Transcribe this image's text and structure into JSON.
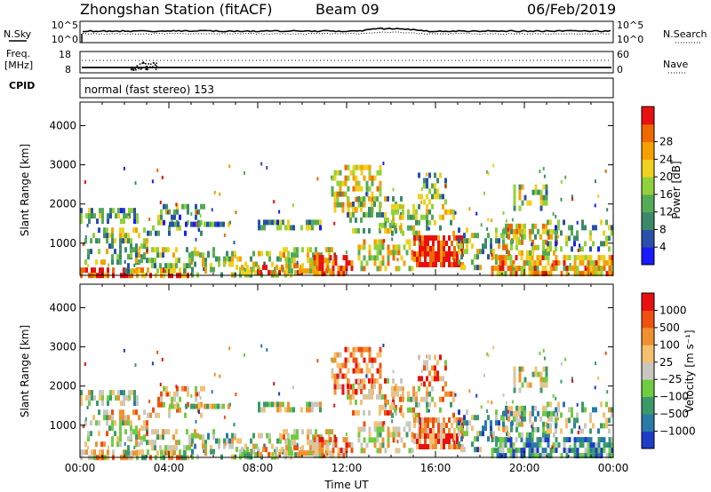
{
  "header": {
    "station": "Zhongshan Station (fitACF)",
    "beam": "Beam 09",
    "date": "06/Feb/2019"
  },
  "panel_labels": {
    "nsky": "N.Sky",
    "nsearch": "N.Search",
    "freq_line1": "Freq.",
    "freq_line2": "[MHz]",
    "nave": "Nave",
    "cpid": "CPID",
    "cpid_value": "normal (fast stereo) 153"
  },
  "chart_data": [
    {
      "type": "line",
      "name": "noise",
      "left_ticks": [
        "10^5",
        "10^0"
      ],
      "right_ticks": [
        "10^5",
        "10^0"
      ],
      "note": "N.Sky solid line, N.Search dotted line, roughly flat near upper-middle of log axis"
    },
    {
      "type": "line",
      "name": "frequency_nave",
      "left_ticks": [
        "18",
        "8"
      ],
      "right_ticks": [
        "60",
        "0"
      ]
    },
    {
      "type": "heatmap",
      "name": "power",
      "xlabel": "",
      "ylabel": "Slant Range [km]",
      "yticks": [
        1000,
        2000,
        3000,
        4000
      ],
      "ylim": [
        180,
        4600
      ],
      "xlim_hours": [
        0,
        24
      ],
      "colorbar": {
        "label": "Power [dB]",
        "ticks": [
          "4",
          "8",
          "12",
          "16",
          "20",
          "24",
          "28"
        ],
        "colors": [
          "#1a1aff",
          "#2a4faa",
          "#3a8a6a",
          "#55aa55",
          "#8fd23a",
          "#f0d020",
          "#f5a000",
          "#f06800",
          "#e81010"
        ]
      }
    },
    {
      "type": "heatmap",
      "name": "velocity",
      "xlabel": "Time UT",
      "ylabel": "Slant Range [km]",
      "yticks": [
        1000,
        2000,
        3000,
        4000
      ],
      "ylim": [
        180,
        4600
      ],
      "xticks": [
        "00:00",
        "04:00",
        "08:00",
        "12:00",
        "16:00",
        "20:00",
        "00:00"
      ],
      "xlim_hours": [
        0,
        24
      ],
      "colorbar": {
        "label": "Velocity [m s⁻¹]",
        "ticks": [
          "1000",
          "500",
          "100",
          "25",
          "−25",
          "−100",
          "−500",
          "−1000"
        ],
        "colors": [
          "#1e3cc8",
          "#2a7aa8",
          "#3a9a6a",
          "#70cc40",
          "#c8c8c0",
          "#f5c070",
          "#f09030",
          "#f05010",
          "#e81010"
        ]
      }
    }
  ]
}
